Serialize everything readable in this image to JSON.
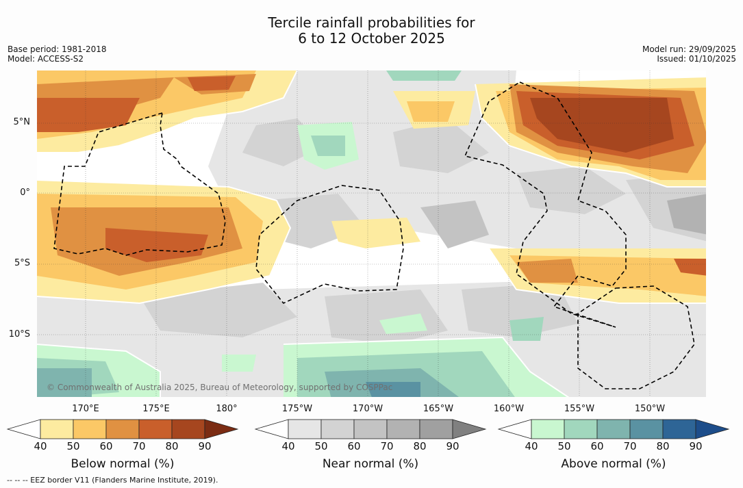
{
  "title": {
    "line1": "Tercile rainfall probabilities for",
    "line2": "6 to 12 October 2025"
  },
  "meta": {
    "base_period": "Base period: 1981-2018",
    "model": "Model: ACCESS-S2",
    "model_run": "Model run: 29/09/2025",
    "issued": "Issued: 01/10/2025"
  },
  "map": {
    "lat_labels": [
      "5°N",
      "0°",
      "5°S",
      "10°S"
    ],
    "lon_labels": [
      "170°E",
      "175°E",
      "180°",
      "175°W",
      "170°W",
      "165°W",
      "160°W",
      "155°W",
      "150°W"
    ],
    "copyright": "© Commonwealth of Australia 2025, Bureau of Meteorology, supported by COSPPac",
    "extent": {
      "lon_range": [
        167,
        214
      ],
      "lat_range": [
        -14.5,
        8.5
      ]
    }
  },
  "colorbars": {
    "below": {
      "label": "Below normal (%)",
      "ticks": [
        "40",
        "50",
        "60",
        "70",
        "80",
        "90"
      ],
      "colors": [
        "#ffffff",
        "#fdeba0",
        "#fbc866",
        "#e09142",
        "#c95f2b",
        "#a6461f",
        "#7b2c13"
      ]
    },
    "near": {
      "label": "Near normal (%)",
      "ticks": [
        "40",
        "50",
        "60",
        "70",
        "80",
        "90"
      ],
      "colors": [
        "#ffffff",
        "#e6e6e6",
        "#d3d3d3",
        "#c3c3c3",
        "#b2b2b2",
        "#a0a0a0",
        "#808080"
      ]
    },
    "above": {
      "label": "Above normal (%)",
      "ticks": [
        "40",
        "50",
        "60",
        "70",
        "80",
        "90"
      ],
      "colors": [
        "#ffffff",
        "#c9f7d0",
        "#a1d7bd",
        "#7fb4ae",
        "#5a92a2",
        "#2e6596",
        "#1d4d8a"
      ]
    }
  },
  "footer": "--  --  -- EEZ border V11 (Flanders Marine Institute, 2019)."
}
